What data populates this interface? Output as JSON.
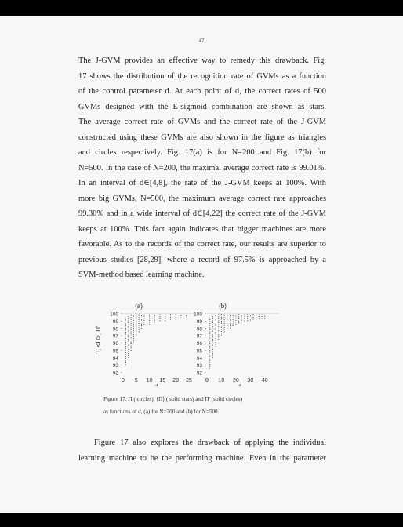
{
  "page_number": "47",
  "paragraph1": [
    "The J-GVM provides an effective way to remedy this drawback. Fig.",
    "17 shows the distribution of the recognition rate of GVMs as a function",
    "of the control parameter d. At each point of d, the correct rates of 500",
    "GVMs designed with the E-sigmoid combination are shown as stars.",
    "The average correct rate of GVMs and the correct rate of the J-GVM",
    "constructed using these GVMs are also shown in the figure as triangles",
    "and circles respectively. Fig. 17(a) is for N=200 and Fig. 17(b) for",
    "N=500. In the case of N=200, the maximal average correct rate is 99.01%.",
    "In an interval of d∈[4,8], the rate of the J-GVM keeps at 100%. With",
    "more big GVMs, N=500, the maximum average correct rate approaches",
    "99.30% and in a wide interval of d∈[4,22] the correct rate of the J-GVM",
    "keeps at 100%. This fact again indicates that bigger machines are more",
    "favorable. As to the records of the correct rate, our results are superior to",
    "previous studies [28,29], where a record of 97.5% is approached by a",
    "SVM-method based learning machine."
  ],
  "figure": {
    "ylabel": "Π, <Π>, Π'",
    "panels": [
      {
        "label": "(a)",
        "xlabel": "d",
        "xticks": [
          "0",
          "5",
          "10",
          "15",
          "20",
          "25"
        ],
        "yticks": [
          "100",
          "99",
          "98",
          "97",
          "96",
          "95",
          "94",
          "93",
          "92"
        ]
      },
      {
        "label": "(b)",
        "xlabel": "d",
        "xticks": [
          "0",
          "10",
          "20",
          "30",
          "40"
        ],
        "yticks": [
          "100",
          "99",
          "98",
          "97",
          "96",
          "95",
          "94",
          "93",
          "92"
        ]
      }
    ]
  },
  "chart_data": [
    {
      "type": "scatter",
      "title": "(a)",
      "xlabel": "d",
      "ylabel": "Π, <Π>, Π'",
      "xlim": [
        0,
        25
      ],
      "ylim": [
        92,
        100
      ],
      "columns_x": [
        1,
        2,
        3,
        4,
        5,
        6,
        7,
        8,
        10,
        12,
        14,
        16,
        18,
        20,
        22,
        24
      ],
      "columns_ymin": [
        93,
        94,
        95,
        96,
        97,
        97.5,
        98,
        98.5,
        98.5,
        98.8,
        99,
        99,
        99.2,
        99.2,
        99.4,
        99.4
      ],
      "columns_ymax": [
        99.6,
        99.8,
        100,
        100,
        100,
        100,
        100,
        100,
        100,
        100,
        100,
        100,
        100,
        100,
        100,
        100
      ]
    },
    {
      "type": "scatter",
      "title": "(b)",
      "xlabel": "d",
      "ylabel": "Π, <Π>, Π'",
      "xlim": [
        0,
        45
      ],
      "ylim": [
        92,
        100
      ],
      "columns_x": [
        2,
        4,
        6,
        8,
        10,
        12,
        14,
        16,
        18,
        20,
        22,
        24,
        26,
        28,
        30,
        32,
        34,
        36,
        38,
        40
      ],
      "columns_ymin": [
        92.5,
        94,
        95.5,
        96.5,
        97,
        97.5,
        98,
        98,
        98.3,
        98.5,
        98.7,
        98.8,
        99,
        99,
        99.1,
        99.2,
        99.2,
        99.3,
        99.3,
        99.3
      ],
      "columns_ymax": [
        99.5,
        99.8,
        100,
        100,
        100,
        100,
        100,
        100,
        100,
        100,
        100,
        100,
        100,
        100,
        100,
        100,
        100,
        100,
        100,
        100
      ]
    }
  ],
  "caption": [
    "Figure 17.  Π ( circles),  ⟨Π⟩  ( solid stars) and  Π'  (solid circles)",
    "as functions of d, (a) for N=200 and (b) for N=500."
  ],
  "paragraph2": [
    "Figure 17 also explores the drawback of applying the individual",
    "learning machine to be the performing machine. Even in the parameter"
  ]
}
